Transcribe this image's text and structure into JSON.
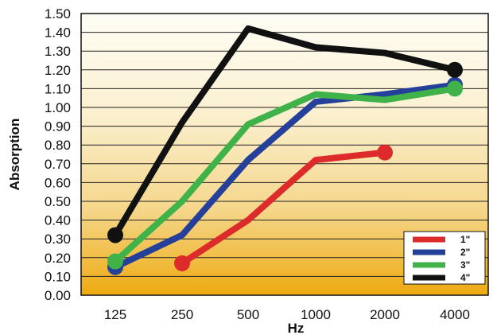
{
  "chart_data": {
    "type": "line",
    "title": "",
    "xlabel": "Hz",
    "ylabel": "Absorption",
    "categories": [
      "125",
      "250",
      "500",
      "1000",
      "2000",
      "4000"
    ],
    "ylim": [
      0.0,
      1.5
    ],
    "yticks": [
      "0.00",
      "0.10",
      "0.20",
      "0.30",
      "0.40",
      "0.50",
      "0.60",
      "0.70",
      "0.80",
      "0.90",
      "1.00",
      "1.10",
      "1.20",
      "1.30",
      "1.40",
      "1.50"
    ],
    "grid": "horizontal",
    "legend_position": "bottom-right",
    "background": "gradient-cream-to-gold",
    "series": [
      {
        "name": "1\"",
        "color": "#dd2a2a",
        "values": [
          null,
          0.17,
          0.4,
          0.72,
          0.76,
          null
        ],
        "markers": [
          false,
          true,
          false,
          false,
          true,
          false
        ]
      },
      {
        "name": "2\"",
        "color": "#24409a",
        "values": [
          0.15,
          0.32,
          0.72,
          1.03,
          1.07,
          1.12
        ],
        "markers": [
          true,
          false,
          false,
          false,
          false,
          true
        ]
      },
      {
        "name": "3\"",
        "color": "#3fb24a",
        "values": [
          0.18,
          0.5,
          0.91,
          1.07,
          1.04,
          1.1
        ],
        "markers": [
          true,
          false,
          false,
          false,
          false,
          true
        ]
      },
      {
        "name": "4\"",
        "color": "#111111",
        "values": [
          0.32,
          0.92,
          1.42,
          1.32,
          1.29,
          1.2
        ],
        "markers": [
          true,
          false,
          false,
          false,
          false,
          true
        ]
      }
    ]
  }
}
